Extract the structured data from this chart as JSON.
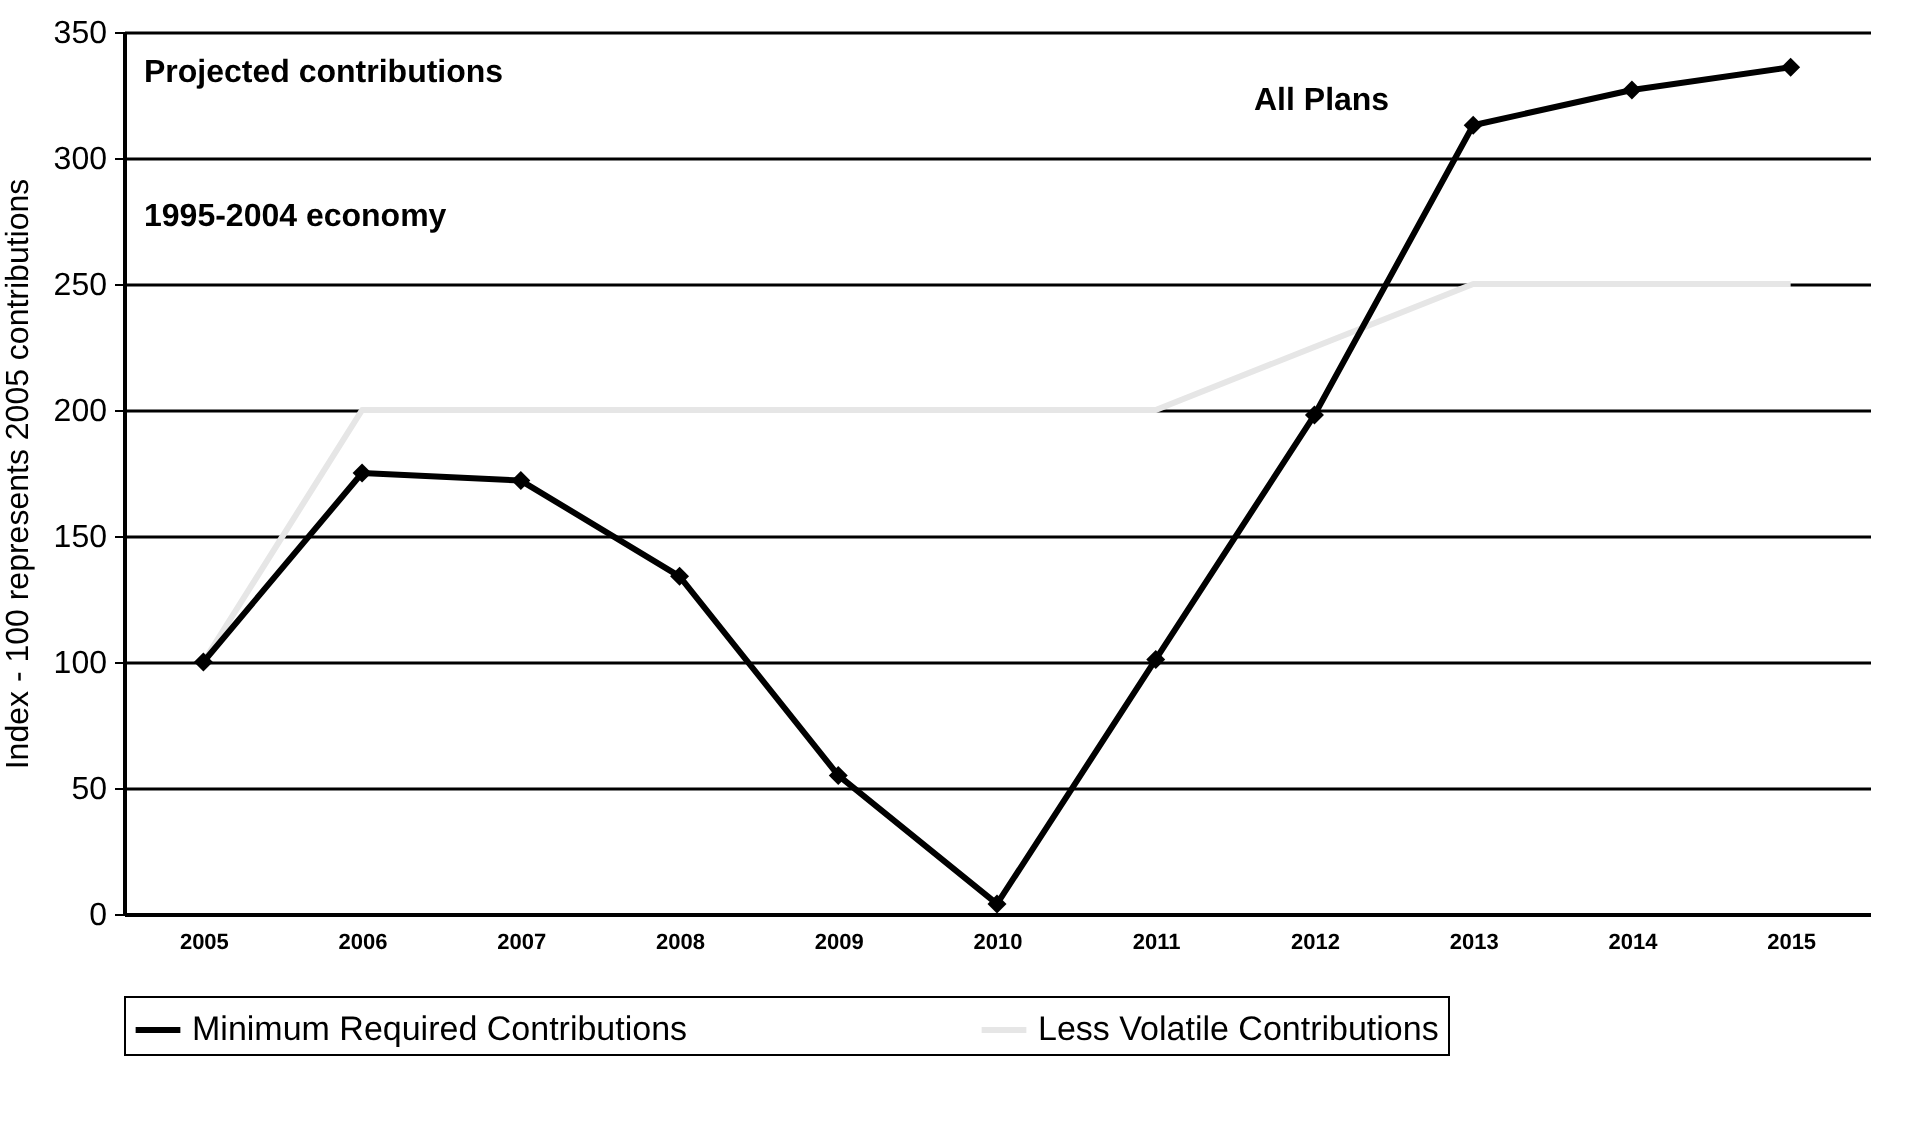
{
  "chart_data": {
    "type": "line",
    "ylabel": "Index - 100 represents 2005 contributions",
    "annotations": [
      "Projected contributions",
      "1995-2004 economy",
      "All Plans"
    ],
    "categories": [
      "2005",
      "2006",
      "2007",
      "2008",
      "2009",
      "2010",
      "2011",
      "2012",
      "2013",
      "2014",
      "2015"
    ],
    "series": [
      {
        "name": "Minimum Required Contributions",
        "color": "#000000",
        "marker": "diamond",
        "values": [
          100,
          175,
          172,
          134,
          55,
          4,
          101,
          198,
          313,
          327,
          336
        ]
      },
      {
        "name": "Less Volatile Contributions",
        "color": "#e6e6e6",
        "marker": "none",
        "values": [
          100,
          200,
          200,
          200,
          200,
          200,
          200,
          225,
          250,
          250,
          250
        ]
      }
    ],
    "ylim": [
      0,
      350
    ],
    "yticks": [
      0,
      50,
      100,
      150,
      200,
      250,
      300,
      350
    ],
    "grid": "y",
    "legend": "bottom"
  }
}
